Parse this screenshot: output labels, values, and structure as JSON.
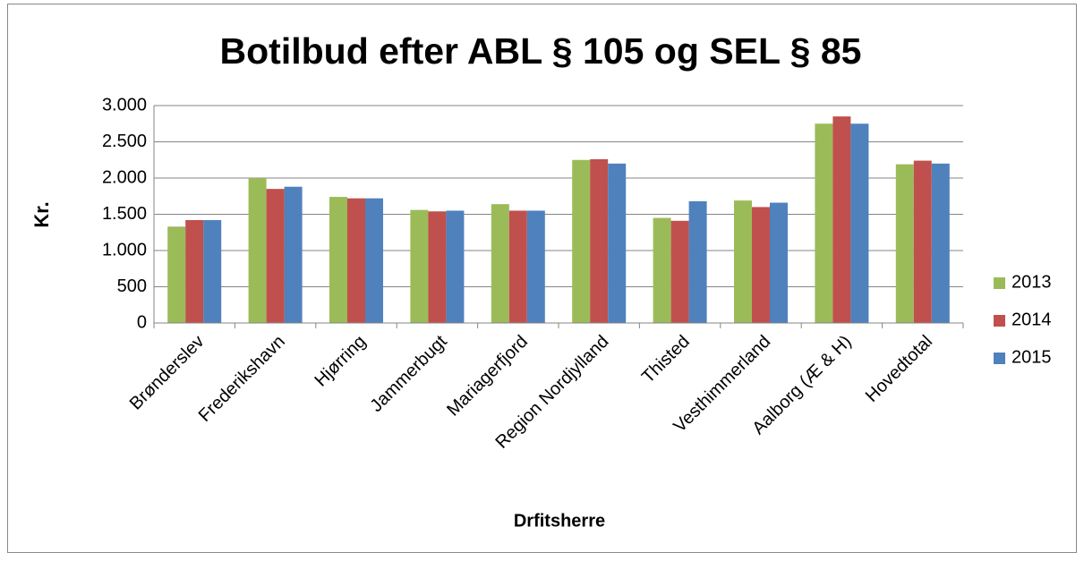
{
  "chart_data": {
    "type": "bar",
    "title": "Botilbud efter ABL § 105 og SEL § 85",
    "x_label": "Drfitsherre",
    "y_label": "Kr.",
    "categories": [
      "Brønderslev",
      "Frederikshavn",
      "Hjørring",
      "Jammerbugt",
      "Mariagerfjord",
      "Region Nordjylland",
      "Thisted",
      "Vesthimmerland",
      "Aalborg (Æ & H)",
      "Hovedtotal"
    ],
    "series": [
      {
        "name": "2013",
        "color": "#9bbb59",
        "values": [
          1330,
          2000,
          1740,
          1560,
          1640,
          2250,
          1450,
          1690,
          2750,
          2190
        ]
      },
      {
        "name": "2014",
        "color": "#c0504d",
        "values": [
          1420,
          1850,
          1720,
          1540,
          1550,
          2260,
          1410,
          1600,
          2850,
          2240
        ]
      },
      {
        "name": "2015",
        "color": "#4f81bd",
        "values": [
          1420,
          1880,
          1720,
          1550,
          1550,
          2200,
          1680,
          1660,
          2750,
          2200
        ]
      }
    ],
    "ylim": [
      0,
      3000
    ],
    "yticks": [
      0,
      500,
      {
        "value": 1000,
        "label": "1.000"
      },
      {
        "value": 1500,
        "label": "1.500"
      },
      {
        "value": 2000,
        "label": "2.000"
      },
      {
        "value": 2500,
        "label": "2.500"
      },
      {
        "value": 3000,
        "label": "3.000"
      }
    ],
    "grid": true,
    "legend": "right"
  }
}
